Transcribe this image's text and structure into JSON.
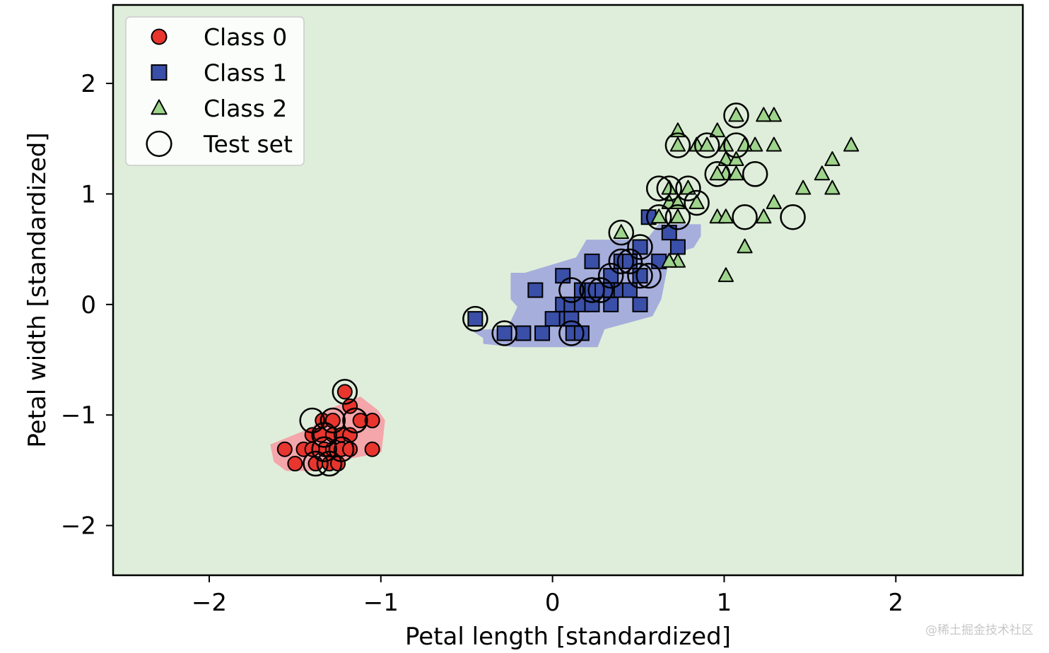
{
  "chart_data": {
    "type": "scatter",
    "title": "",
    "xlabel": "Petal length [standardized]",
    "ylabel": "Petal width [standardized]",
    "xlim": [
      -2.56,
      2.74
    ],
    "ylim": [
      -2.45,
      2.71
    ],
    "xticks": [
      -2,
      -1,
      0,
      1,
      2
    ],
    "yticks": [
      -2,
      -1,
      0,
      1,
      2
    ],
    "xtick_labels": [
      "−2",
      "−1",
      "0",
      "1",
      "2"
    ],
    "ytick_labels": [
      "−2",
      "−1",
      "0",
      "1",
      "2"
    ],
    "grid": false,
    "legend_position": "upper-left",
    "background_color": "#dfeeda",
    "regions": [
      {
        "name": "Class 0 region",
        "color": "#f4a6aa",
        "polygon": [
          [
            -1.64,
            -1.27
          ],
          [
            -1.4,
            -1.12
          ],
          [
            -1.3,
            -0.95
          ],
          [
            -1.12,
            -0.84
          ],
          [
            -1.02,
            -0.96
          ],
          [
            -0.98,
            -1.05
          ],
          [
            -1.0,
            -1.33
          ],
          [
            -1.08,
            -1.36
          ],
          [
            -1.3,
            -1.42
          ],
          [
            -1.38,
            -1.5
          ],
          [
            -1.55,
            -1.5
          ],
          [
            -1.62,
            -1.42
          ]
        ]
      },
      {
        "name": "Class 1 region",
        "color": "#a6aedc",
        "polygon": [
          [
            -0.4,
            -0.35
          ],
          [
            -0.22,
            -0.38
          ],
          [
            0.26,
            -0.38
          ],
          [
            0.3,
            -0.22
          ],
          [
            0.58,
            -0.1
          ],
          [
            0.63,
            0.05
          ],
          [
            0.68,
            0.45
          ],
          [
            0.82,
            0.52
          ],
          [
            0.86,
            0.62
          ],
          [
            0.86,
            0.72
          ],
          [
            0.62,
            0.72
          ],
          [
            0.55,
            0.58
          ],
          [
            0.2,
            0.58
          ],
          [
            0.14,
            0.42
          ],
          [
            -0.16,
            0.28
          ],
          [
            -0.24,
            0.28
          ],
          [
            -0.24,
            0.05
          ],
          [
            -0.2,
            -0.02
          ],
          [
            -0.26,
            -0.22
          ],
          [
            -0.46,
            -0.24
          ],
          [
            -0.4,
            -0.3
          ]
        ]
      }
    ],
    "series": [
      {
        "name": "Class 0",
        "marker": "circle",
        "color": "#e8352e",
        "points": [
          [
            -1.56,
            -1.31
          ],
          [
            -1.45,
            -1.31
          ],
          [
            -1.5,
            -1.44
          ],
          [
            -1.4,
            -1.18
          ],
          [
            -1.35,
            -1.18
          ],
          [
            -1.34,
            -1.05
          ],
          [
            -1.28,
            -1.05
          ],
          [
            -1.28,
            -1.18
          ],
          [
            -1.33,
            -1.31
          ],
          [
            -1.28,
            -1.31
          ],
          [
            -1.23,
            -1.31
          ],
          [
            -1.23,
            -1.18
          ],
          [
            -1.18,
            -1.18
          ],
          [
            -1.12,
            -1.05
          ],
          [
            -1.18,
            -0.92
          ],
          [
            -1.21,
            -0.79
          ],
          [
            -1.05,
            -1.05
          ],
          [
            -1.05,
            -1.31
          ],
          [
            -1.38,
            -1.44
          ],
          [
            -1.3,
            -1.44
          ],
          [
            -1.25,
            -1.44
          ],
          [
            -1.18,
            -1.31
          ],
          [
            -1.4,
            -1.31
          ]
        ]
      },
      {
        "name": "Class 1",
        "marker": "square",
        "color": "#3a4fa8",
        "points": [
          [
            -0.45,
            -0.13
          ],
          [
            -0.28,
            -0.26
          ],
          [
            -0.17,
            -0.26
          ],
          [
            -0.06,
            -0.26
          ],
          [
            0.06,
            -0.13
          ],
          [
            0.12,
            -0.26
          ],
          [
            0.17,
            -0.26
          ],
          [
            -0.1,
            0.13
          ],
          [
            0.06,
            0.0
          ],
          [
            0.11,
            0.0
          ],
          [
            0.17,
            0.0
          ],
          [
            0.23,
            0.0
          ],
          [
            0.34,
            0.0
          ],
          [
            0.51,
            0.0
          ],
          [
            0.06,
            0.26
          ],
          [
            0.17,
            0.13
          ],
          [
            0.23,
            0.13
          ],
          [
            0.29,
            0.13
          ],
          [
            0.34,
            0.13
          ],
          [
            0.4,
            0.13
          ],
          [
            0.45,
            0.13
          ],
          [
            0.23,
            0.39
          ],
          [
            0.34,
            0.26
          ],
          [
            0.4,
            0.39
          ],
          [
            0.45,
            0.39
          ],
          [
            0.51,
            0.26
          ],
          [
            0.51,
            0.52
          ],
          [
            0.62,
            0.39
          ],
          [
            0.68,
            0.65
          ],
          [
            0.73,
            0.52
          ],
          [
            0.56,
            0.79
          ],
          [
            0.11,
            -0.13
          ],
          [
            0.0,
            -0.13
          ]
        ]
      },
      {
        "name": "Class 2",
        "marker": "triangle",
        "color": "#9ed48c",
        "points": [
          [
            1.29,
            1.71
          ],
          [
            1.23,
            1.71
          ],
          [
            1.74,
            1.44
          ],
          [
            1.63,
            1.31
          ],
          [
            1.57,
            1.18
          ],
          [
            1.63,
            1.05
          ],
          [
            1.46,
            1.05
          ],
          [
            1.29,
            1.44
          ],
          [
            1.18,
            1.44
          ],
          [
            1.29,
            0.92
          ],
          [
            1.23,
            0.79
          ],
          [
            1.12,
            0.52
          ],
          [
            1.01,
            0.26
          ],
          [
            0.96,
            0.79
          ],
          [
            1.01,
            0.79
          ],
          [
            0.73,
            0.79
          ],
          [
            0.62,
            0.79
          ],
          [
            0.68,
            0.92
          ],
          [
            0.73,
            0.92
          ],
          [
            0.79,
            1.05
          ],
          [
            0.68,
            1.05
          ],
          [
            0.73,
            1.57
          ],
          [
            0.96,
            1.57
          ],
          [
            0.84,
            1.44
          ],
          [
            0.9,
            1.44
          ],
          [
            1.01,
            1.31
          ],
          [
            1.07,
            1.31
          ],
          [
            1.01,
            1.18
          ],
          [
            1.07,
            1.18
          ],
          [
            0.96,
            1.18
          ],
          [
            0.73,
            0.39
          ],
          [
            0.68,
            0.39
          ],
          [
            0.73,
            1.44
          ],
          [
            1.07,
            1.71
          ],
          [
            0.4,
            0.65
          ],
          [
            0.84,
            0.92
          ],
          [
            1.01,
            1.44
          ],
          [
            1.12,
            1.44
          ]
        ]
      }
    ],
    "test_set": {
      "name": "Test set",
      "marker": "open-circle",
      "points": [
        [
          -1.21,
          -0.79
        ],
        [
          -1.4,
          -1.05
        ],
        [
          -1.28,
          -1.05
        ],
        [
          -1.15,
          -1.05
        ],
        [
          -1.33,
          -1.18
        ],
        [
          -1.33,
          -1.31
        ],
        [
          -1.23,
          -1.31
        ],
        [
          -1.38,
          -1.44
        ],
        [
          -1.3,
          -1.44
        ],
        [
          -0.45,
          -0.13
        ],
        [
          -0.28,
          -0.26
        ],
        [
          0.11,
          -0.26
        ],
        [
          0.11,
          0.13
        ],
        [
          0.23,
          0.13
        ],
        [
          0.28,
          0.13
        ],
        [
          0.34,
          0.26
        ],
        [
          0.4,
          0.39
        ],
        [
          0.45,
          0.39
        ],
        [
          0.51,
          0.26
        ],
        [
          0.56,
          0.26
        ],
        [
          0.51,
          0.52
        ],
        [
          0.4,
          0.65
        ],
        [
          0.62,
          0.79
        ],
        [
          0.73,
          0.79
        ],
        [
          0.62,
          1.05
        ],
        [
          0.68,
          1.05
        ],
        [
          0.79,
          1.05
        ],
        [
          0.84,
          0.92
        ],
        [
          0.73,
          1.44
        ],
        [
          0.9,
          1.44
        ],
        [
          1.07,
          1.44
        ],
        [
          0.96,
          1.18
        ],
        [
          1.18,
          1.18
        ],
        [
          1.07,
          1.71
        ],
        [
          1.12,
          0.79
        ],
        [
          1.4,
          0.79
        ]
      ]
    },
    "legend": [
      {
        "label": "Class 0",
        "marker": "circle"
      },
      {
        "label": "Class 1",
        "marker": "square"
      },
      {
        "label": "Class 2",
        "marker": "triangle"
      },
      {
        "label": "Test set",
        "marker": "open-circle"
      }
    ]
  },
  "watermark": "@稀土掘金技术社区"
}
